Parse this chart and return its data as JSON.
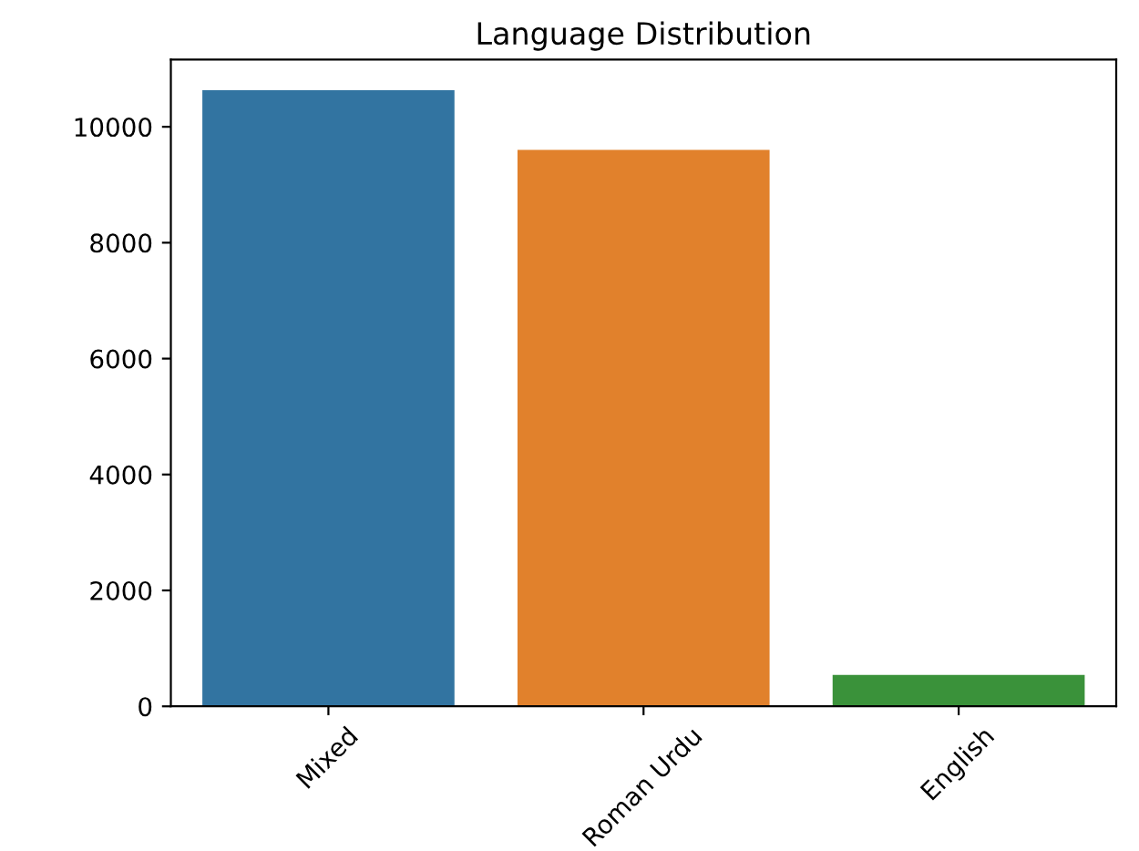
{
  "chart_data": {
    "type": "bar",
    "title": "Language Distribution",
    "categories": [
      "Mixed",
      "Roman Urdu",
      "English"
    ],
    "values": [
      10630,
      9600,
      540
    ],
    "colors": [
      "#3274a1",
      "#e1812c",
      "#3a923a"
    ],
    "ylim": [
      0,
      11160
    ],
    "yticks": [
      0,
      2000,
      4000,
      6000,
      8000,
      10000
    ],
    "grid": false
  }
}
